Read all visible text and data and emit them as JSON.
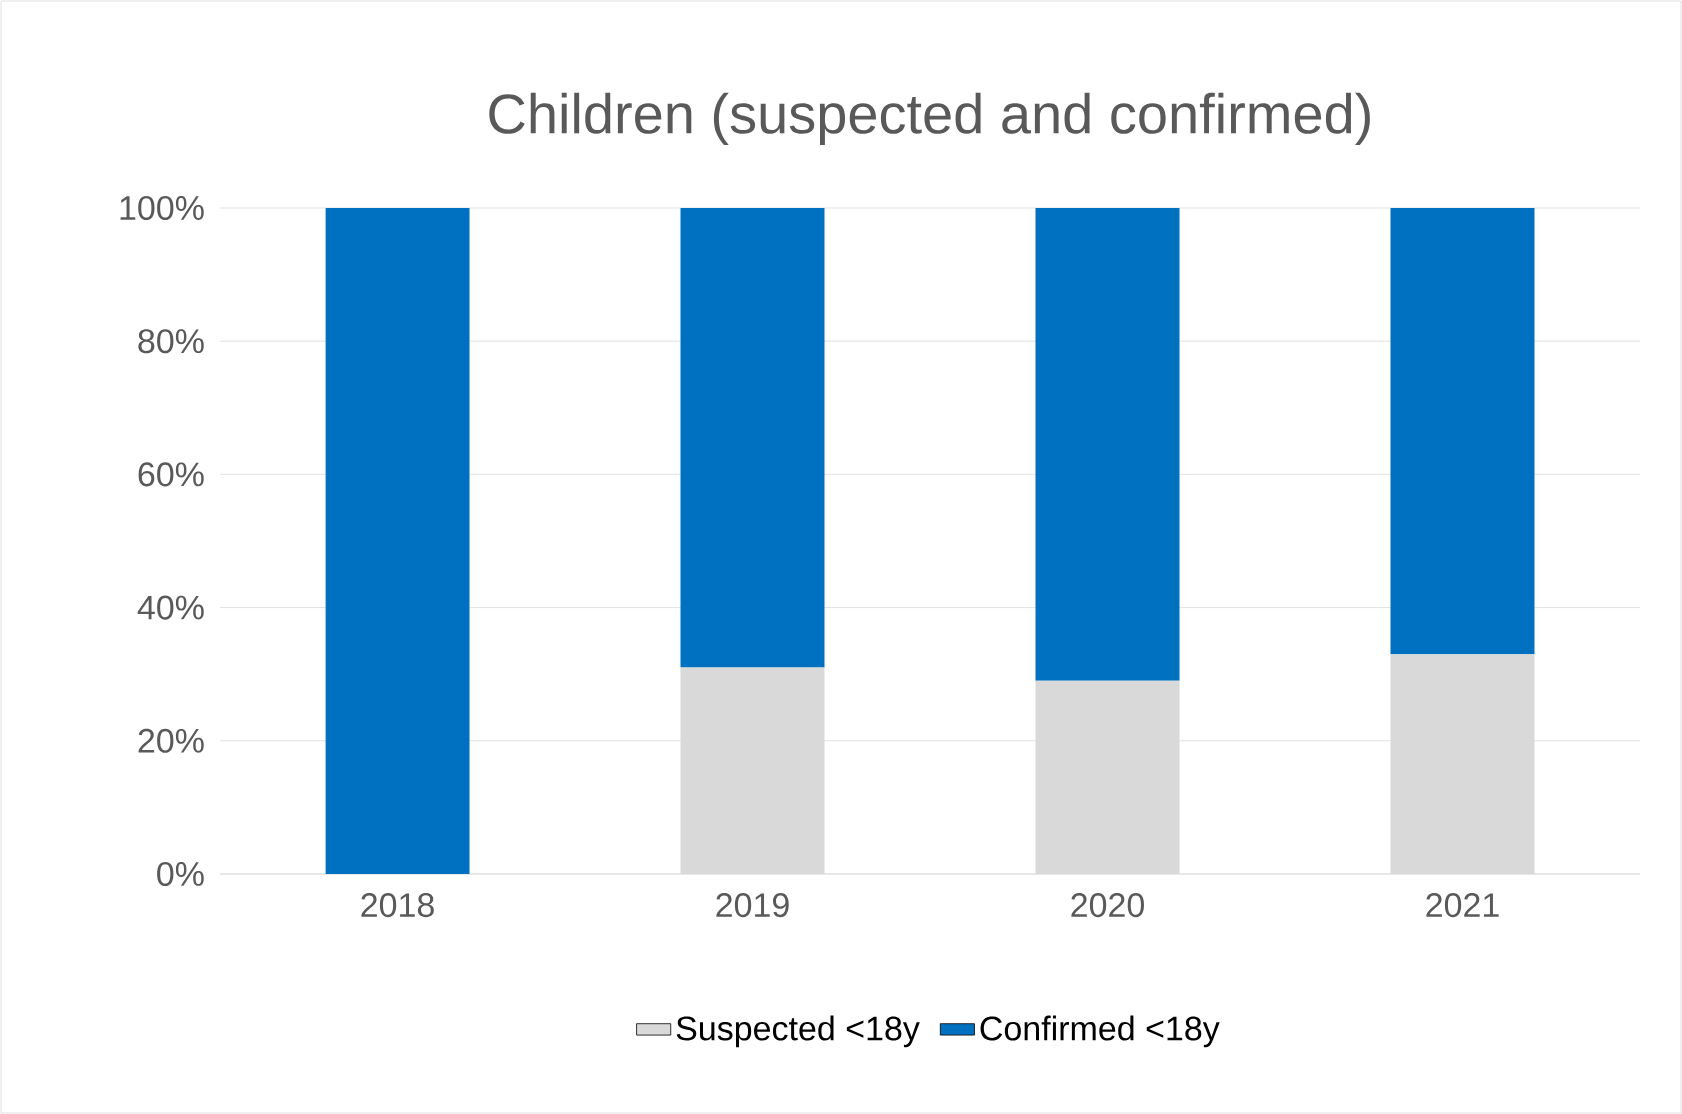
{
  "chart_data": {
    "type": "bar",
    "title": "Children (suspected and confirmed)",
    "categories": [
      "2018",
      "2019",
      "2020",
      "2021"
    ],
    "stacked": true,
    "series": [
      {
        "name": "Suspected <18y",
        "color": "#d9d9d9",
        "values": [
          0,
          31,
          29,
          33
        ]
      },
      {
        "name": "Confirmed <18y",
        "color": "#0070c0",
        "values": [
          100,
          69,
          71,
          67
        ]
      }
    ],
    "ylim": [
      0,
      100
    ],
    "yticks": [
      {
        "value": 0,
        "label": "0%"
      },
      {
        "value": 20,
        "label": "20%"
      },
      {
        "value": 40,
        "label": "40%"
      },
      {
        "value": 60,
        "label": "60%"
      },
      {
        "value": 80,
        "label": "80%"
      },
      {
        "value": 100,
        "label": "100%"
      }
    ],
    "grid": "y",
    "legend": "bottom"
  }
}
